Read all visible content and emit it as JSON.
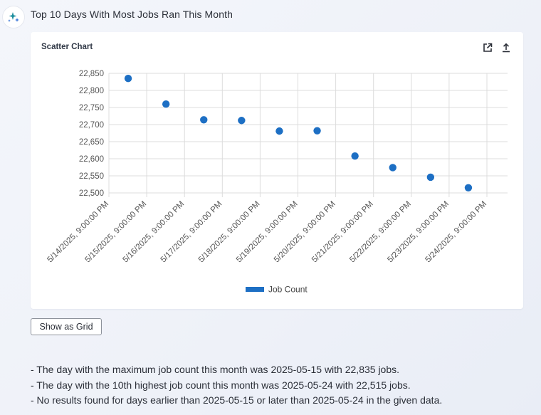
{
  "message": {
    "title": "Top 10 Days With Most Jobs Ran This Month"
  },
  "chart_card": {
    "title": "Scatter Chart",
    "actions": [
      "open-external-icon",
      "upload-icon"
    ]
  },
  "colors": {
    "series": "#1d6fc4",
    "grid": "#dcdcdc",
    "axis_text": "#555555"
  },
  "chart_data": {
    "type": "scatter",
    "x": [
      "5/14/2025, 9:00:00 PM",
      "5/15/2025, 9:00:00 PM",
      "5/16/2025, 9:00:00 PM",
      "5/17/2025, 9:00:00 PM",
      "5/18/2025, 9:00:00 PM",
      "5/19/2025, 9:00:00 PM",
      "5/20/2025, 9:00:00 PM",
      "5/21/2025, 9:00:00 PM",
      "5/22/2025, 9:00:00 PM",
      "5/23/2025, 9:00:00 PM",
      "5/24/2025, 9:00:00 PM"
    ],
    "series": [
      {
        "name": "Job Count",
        "points": [
          {
            "x": "2025-05-15",
            "y": 22835
          },
          {
            "x": "2025-05-16",
            "y": 22760
          },
          {
            "x": "2025-05-17",
            "y": 22714
          },
          {
            "x": "2025-05-18",
            "y": 22712
          },
          {
            "x": "2025-05-19",
            "y": 22681
          },
          {
            "x": "2025-05-20",
            "y": 22682
          },
          {
            "x": "2025-05-21",
            "y": 22608
          },
          {
            "x": "2025-05-22",
            "y": 22574
          },
          {
            "x": "2025-05-23",
            "y": 22546
          },
          {
            "x": "2025-05-24",
            "y": 22515
          }
        ]
      }
    ],
    "yticks": [
      "22,850",
      "22,800",
      "22,750",
      "22,700",
      "22,650",
      "22,600",
      "22,550",
      "22,500"
    ],
    "ylim": [
      22500,
      22850
    ],
    "grid": true,
    "legend": "bottom"
  },
  "controls": {
    "show_grid_label": "Show as Grid"
  },
  "summary": [
    "- The day with the maximum job count this month was 2025-05-15 with 22,835 jobs.",
    "- The day with the 10th highest job count this month was 2025-05-24 with 22,515 jobs.",
    "- No results found for days earlier than 2025-05-15 or later than 2025-05-24 in the given data."
  ]
}
